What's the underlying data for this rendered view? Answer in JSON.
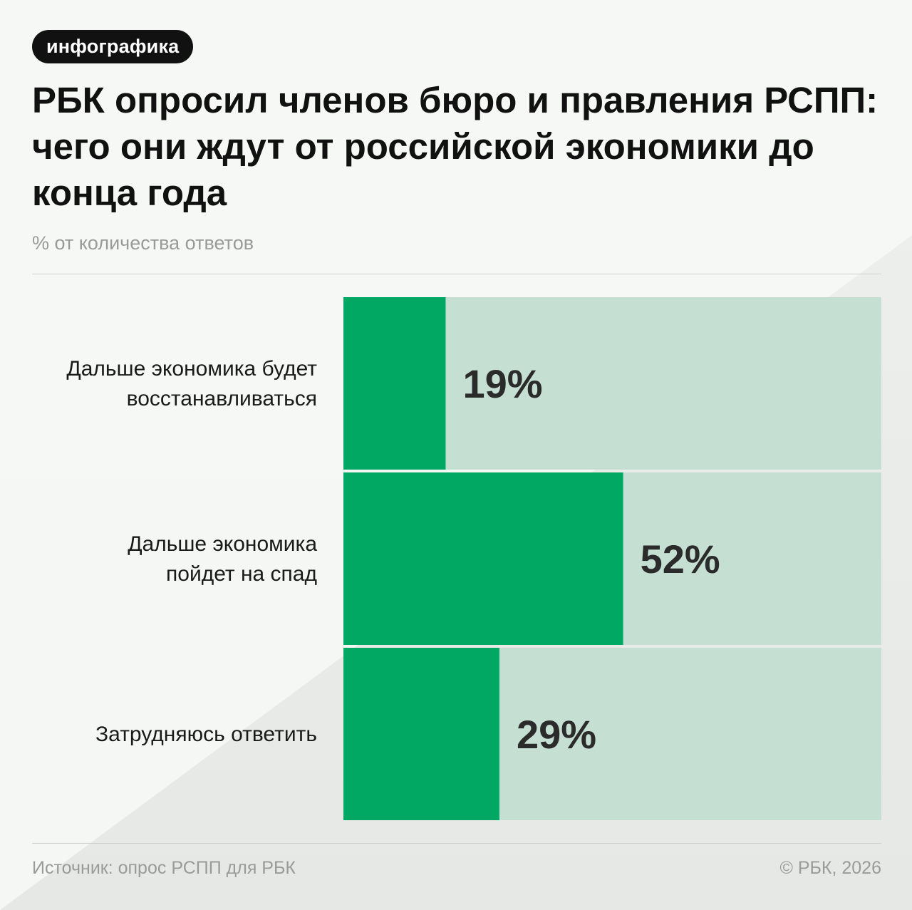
{
  "badge": "инфографика",
  "title": "РБК опросил членов бюро и правления РСПП: чего они ждут от российской экономики до конца года",
  "subtitle": "% от количества ответов",
  "footer": {
    "source": "Источник: опрос РСПП для РБК",
    "copyright": "© РБК, 2026"
  },
  "colors": {
    "bar_fill": "#00a864",
    "bar_track": "#c5dfd2",
    "background": "#eceeec",
    "text": "#111111"
  },
  "chart_data": {
    "type": "bar",
    "orientation": "horizontal",
    "categories": [
      [
        "Дальше экономика будет",
        "восстанавливаться"
      ],
      [
        "Дальше экономика",
        "пойдет на спад"
      ],
      [
        "Затрудняюсь ответить"
      ]
    ],
    "values": [
      19,
      52,
      29
    ],
    "value_labels": [
      "19%",
      "52%",
      "29%"
    ],
    "xlim": [
      0,
      100
    ],
    "grid": false,
    "legend": "none"
  }
}
